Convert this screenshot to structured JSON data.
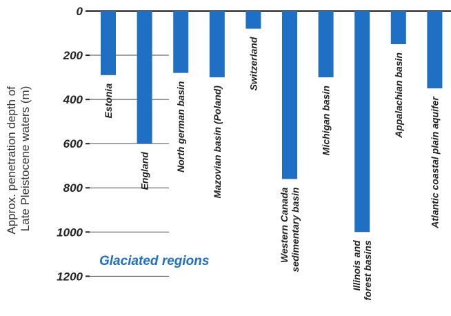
{
  "chart_data": {
    "type": "bar",
    "orientation": "downward",
    "ylabel_lines": [
      "Approx. penetration depth of",
      "Late Pleistocene waters (m)"
    ],
    "yticks": [
      0,
      200,
      400,
      600,
      800,
      1000,
      1200
    ],
    "ytick_labels": [
      "0",
      "200",
      "400",
      "600",
      "800",
      "1000",
      "1200"
    ],
    "ylim": [
      0,
      1200
    ],
    "categories": [
      [
        "Estonia"
      ],
      [
        "England"
      ],
      [
        "North german basin"
      ],
      [
        "Mazovian basin (Poland)"
      ],
      [
        "Switzerland"
      ],
      [
        "Western Canada",
        "sedimentary basin"
      ],
      [
        "Michigan basin"
      ],
      [
        "Illinois and",
        "forest basins"
      ],
      [
        "Appalachian basin"
      ],
      [
        "Atlantic coastal plain aquifer"
      ]
    ],
    "values": [
      290,
      600,
      280,
      300,
      80,
      760,
      300,
      1000,
      150,
      350
    ],
    "annotation": "Glaciated regions",
    "colors": {
      "bar": "#1f6fc5",
      "annotation": "#1f6fc5"
    },
    "grid": true
  }
}
